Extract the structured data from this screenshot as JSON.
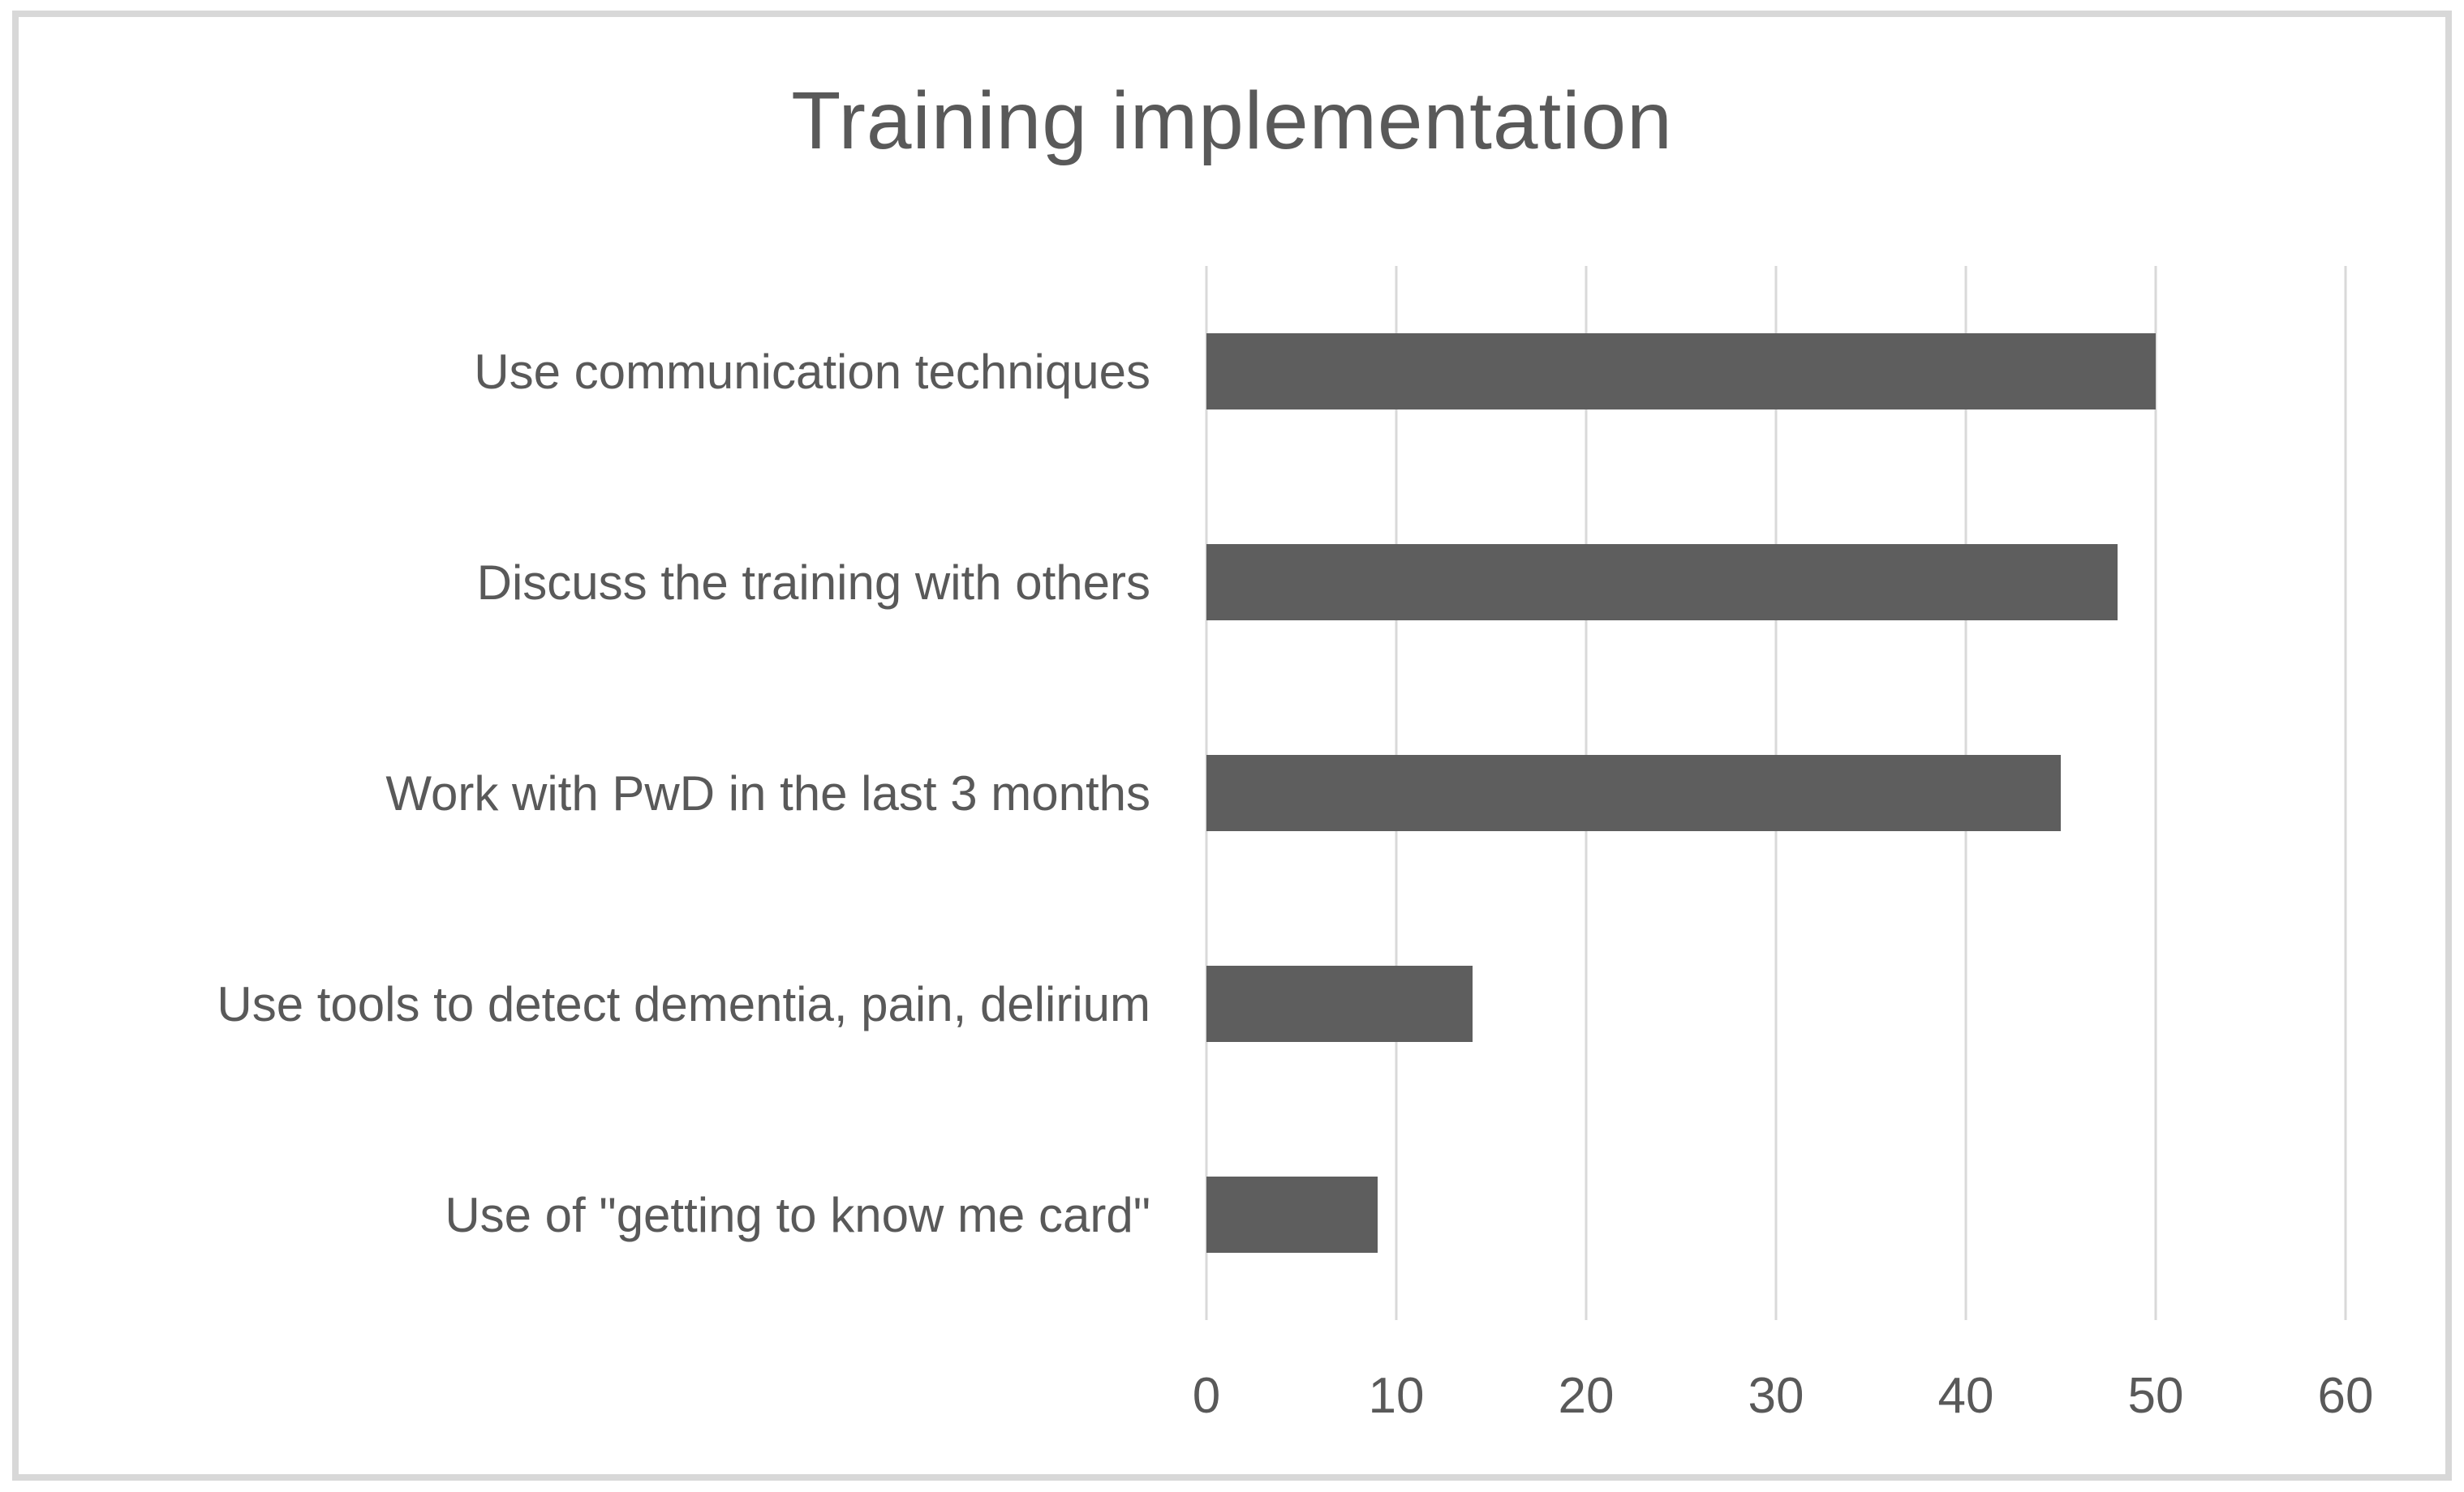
{
  "page": {
    "background_color": "#ffffff",
    "frame_border_color": "#d8d8d8"
  },
  "chart_data": {
    "type": "bar",
    "orientation": "horizontal",
    "title": "Training implementation",
    "categories": [
      "Use communication techniques",
      "Discuss the training with others",
      "Work with PwD in the last 3 months",
      "Use tools to detect dementia, pain, delirium",
      "Use of \"getting to know me card\""
    ],
    "values": [
      50,
      48,
      45,
      14,
      9
    ],
    "xlabel": "",
    "ylabel": "",
    "xlim": [
      0,
      60
    ],
    "xticks": [
      0,
      10,
      20,
      30,
      40,
      50,
      60
    ],
    "grid": "vertical gridlines only",
    "legend": "none",
    "data_labels": "none",
    "bar_color": "#5e5e5e",
    "text_color": "#595959",
    "gridline_color": "#d9d9d9"
  }
}
